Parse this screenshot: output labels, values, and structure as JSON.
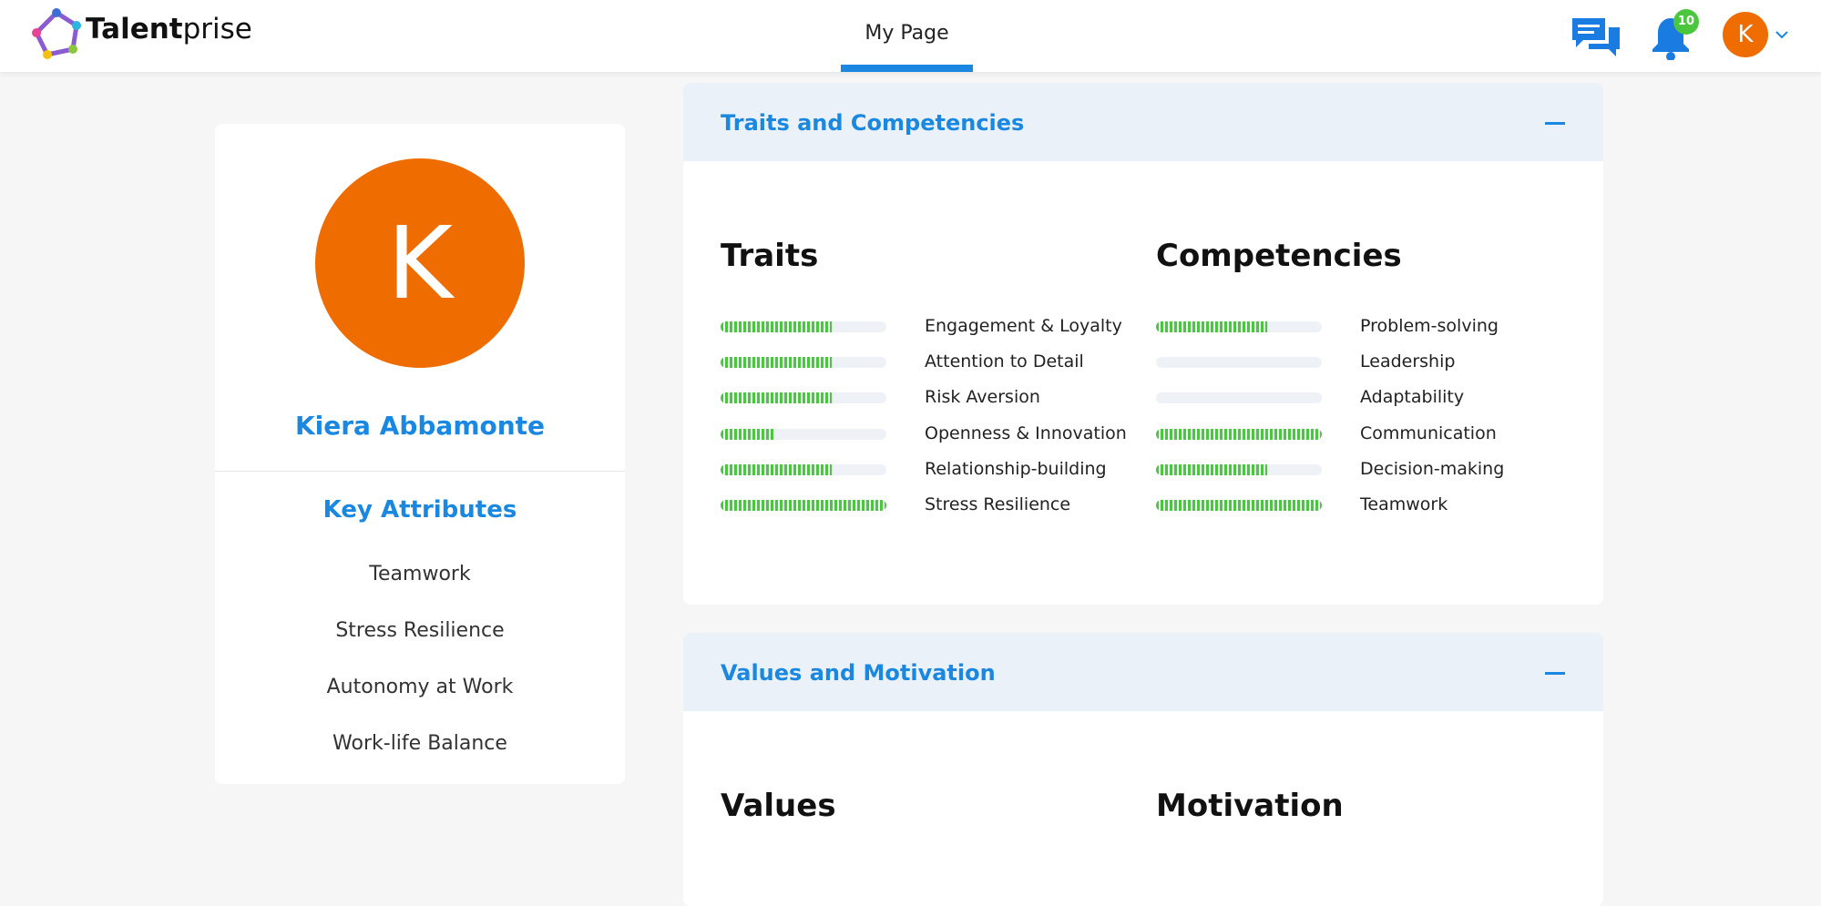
{
  "header": {
    "logo": {
      "bold": "Talent",
      "light": "prise"
    },
    "nav": "My Page",
    "notification_count": "10",
    "avatar": "K"
  },
  "profile": {
    "avatar": "K",
    "name": "Kiera Abbamonte",
    "key_attributes_title": "Key Attributes",
    "key_attributes": [
      "Teamwork",
      "Stress Resilience",
      "Autonomy at Work",
      "Work-life Balance"
    ]
  },
  "sections": [
    {
      "title": "Traits and Competencies",
      "xlim": [
        0,
        100
      ],
      "groups": [
        {
          "title": "Traits",
          "items": [
            {
              "label": "Engagement & Loyalty",
              "value": 67
            },
            {
              "label": "Attention to Detail",
              "value": 67
            },
            {
              "label": "Risk Aversion",
              "value": 67
            },
            {
              "label": "Openness & Innovation",
              "value": 33
            },
            {
              "label": "Relationship-building",
              "value": 67
            },
            {
              "label": "Stress Resilience",
              "value": 100
            }
          ]
        },
        {
          "title": "Competencies",
          "items": [
            {
              "label": "Problem-solving",
              "value": 67
            },
            {
              "label": "Leadership",
              "value": 0
            },
            {
              "label": "Adaptability",
              "value": 0
            },
            {
              "label": "Communication",
              "value": 100
            },
            {
              "label": "Decision-making",
              "value": 67
            },
            {
              "label": "Teamwork",
              "value": 100
            }
          ]
        }
      ]
    },
    {
      "title": "Values and Motivation",
      "groups": [
        {
          "title": "Values"
        },
        {
          "title": "Motivation"
        }
      ]
    }
  ]
}
